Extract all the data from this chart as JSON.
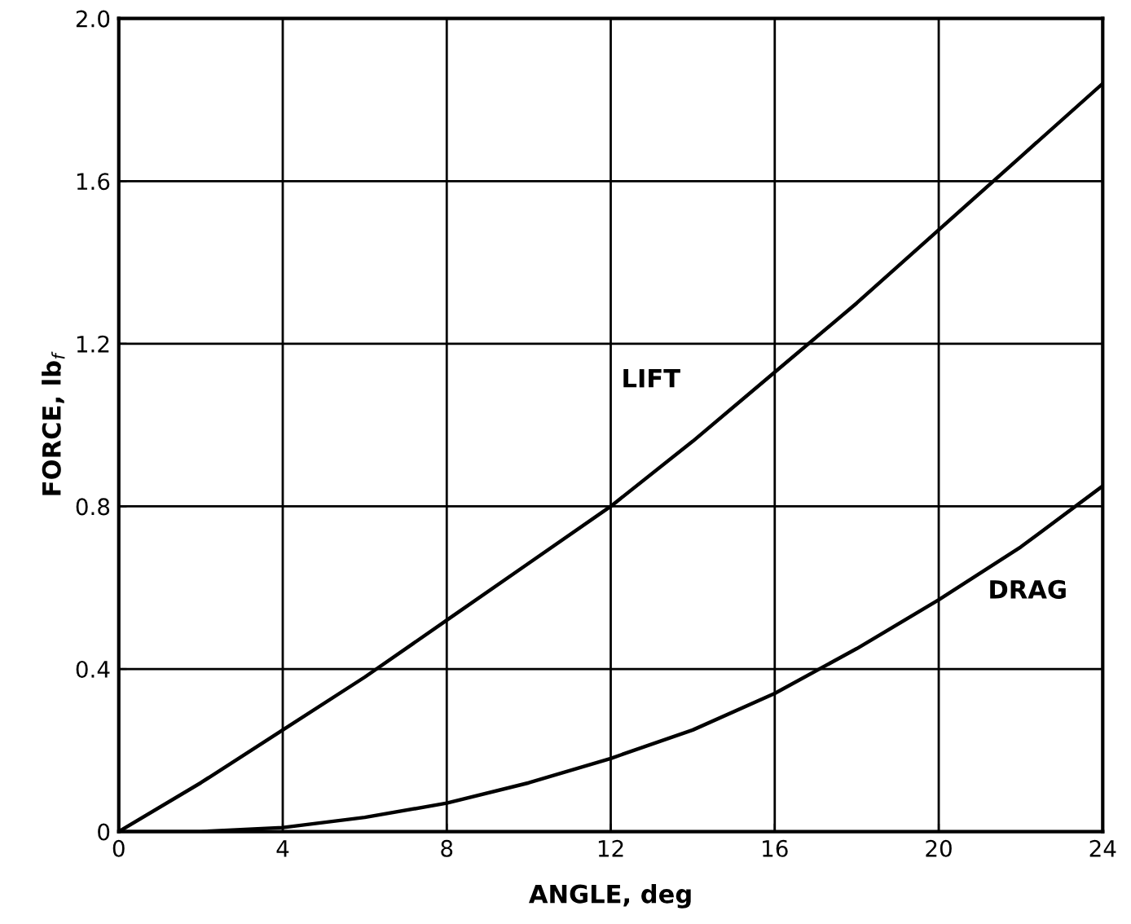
{
  "chart_data": {
    "type": "line",
    "xlabel": "ANGLE, deg",
    "ylabel": "FORCE, lb$_{f}$",
    "x": [
      0,
      2,
      4,
      6,
      8,
      10,
      12,
      14,
      16,
      18,
      20,
      22,
      24
    ],
    "series": [
      {
        "name": "LIFT",
        "color": "#000000",
        "values": [
          0,
          0.12,
          0.25,
          0.38,
          0.52,
          0.66,
          0.8,
          0.96,
          1.13,
          1.3,
          1.48,
          1.66,
          1.84
        ]
      },
      {
        "name": "DRAG",
        "color": "#000000",
        "values": [
          0,
          0.0,
          0.01,
          0.035,
          0.07,
          0.12,
          0.18,
          0.25,
          0.34,
          0.45,
          0.57,
          0.7,
          0.85
        ]
      }
    ],
    "xlim": [
      0,
      24
    ],
    "ylim": [
      0,
      2.0
    ],
    "xticks": [
      0,
      4,
      8,
      12,
      16,
      20,
      24
    ],
    "yticks": [
      0,
      0.4,
      0.8,
      1.2,
      1.6,
      {
        "value": 2.0,
        "label": "2.0"
      }
    ],
    "grid": true,
    "marker": "none",
    "line_style": "solid",
    "legend": false
  }
}
